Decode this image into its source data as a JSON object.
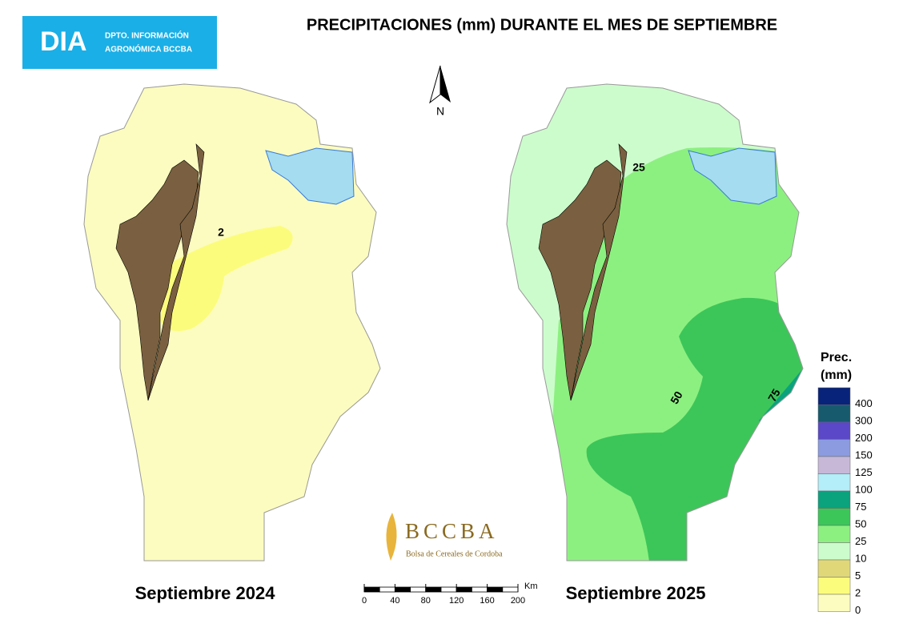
{
  "logo": {
    "abbr": "DIA",
    "line1": "DPTO. INFORMACIÓN",
    "line2": "AGRONÓMICA BCCBA"
  },
  "title": "PRECIPITACIONES (mm) DURANTE EL MES DE SEPTIEMBRE",
  "north": "N",
  "maps": [
    {
      "label": "Septiembre 2024",
      "contours": [
        "2"
      ]
    },
    {
      "label": "Septiembre 2025",
      "contours": [
        "25",
        "50",
        "75"
      ]
    }
  ],
  "legend": {
    "title_line1": "Prec.",
    "title_line2": "(mm)",
    "classes": [
      {
        "value": 400,
        "color": "#08237a"
      },
      {
        "value": 300,
        "color": "#175a6e"
      },
      {
        "value": 200,
        "color": "#5a48c8"
      },
      {
        "value": 150,
        "color": "#8c9be0"
      },
      {
        "value": 125,
        "color": "#c8b8d8"
      },
      {
        "value": 100,
        "color": "#b4eef8"
      },
      {
        "value": 75,
        "color": "#0aa37e"
      },
      {
        "value": 50,
        "color": "#3cc65a"
      },
      {
        "value": 25,
        "color": "#8cf080"
      },
      {
        "value": 10,
        "color": "#ccfccc"
      },
      {
        "value": 5,
        "color": "#e0d878"
      },
      {
        "value": 2,
        "color": "#fcfc7c"
      },
      {
        "value": 0,
        "color": "#fcfcc0"
      }
    ]
  },
  "scale": {
    "unit": "Km",
    "ticks": [
      0,
      40,
      80,
      120,
      160,
      200
    ]
  },
  "bccba": {
    "name": "BCCBA",
    "subtitle": "Bolsa de Cereales de Cordoba"
  }
}
